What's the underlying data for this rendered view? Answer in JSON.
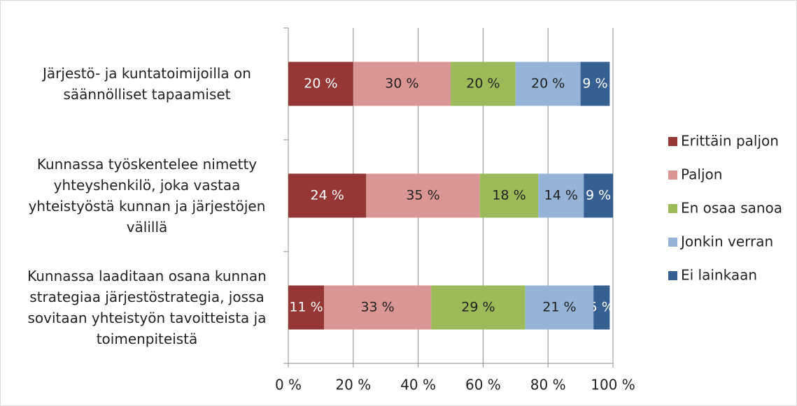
{
  "chart_data": {
    "type": "stacked-bar-horizontal",
    "categories": [
      "Järjestö- ja kuntatoimijoilla on säännölliset tapaamiset",
      "Kunnassa työskentelee nimetty yhteyshenkilö, joka vastaa yhteistyöstä kunnan ja järjestöjen välillä",
      "Kunnassa laaditaan osana kunnan strategiaa järjestöstrategia, jossa sovitaan yhteistyön tavoitteista ja toimenpiteistä"
    ],
    "series": [
      {
        "name": "Erittäin paljon",
        "color": "#953735",
        "label_color": "#ffffff",
        "values": [
          20,
          24,
          11
        ],
        "value_labels": [
          "20 %",
          "24 %",
          "11 %"
        ]
      },
      {
        "name": "Paljon",
        "color": "#d99694",
        "label_color": "#222222",
        "values": [
          30,
          35,
          33
        ],
        "value_labels": [
          "30 %",
          "35 %",
          "33 %"
        ]
      },
      {
        "name": "En osaa sanoa",
        "color": "#9bbb59",
        "label_color": "#222222",
        "values": [
          20,
          18,
          29
        ],
        "value_labels": [
          "20 %",
          "18 %",
          "29 %"
        ]
      },
      {
        "name": "Jonkin verran",
        "color": "#95b3d7",
        "label_color": "#222222",
        "values": [
          20,
          14,
          21
        ],
        "value_labels": [
          "20 %",
          "14 %",
          "21 %"
        ]
      },
      {
        "name": "Ei lainkaan",
        "color": "#376092",
        "label_color": "#ffffff",
        "values": [
          9,
          9,
          5
        ],
        "value_labels": [
          "9 %",
          "9 %",
          "5 %"
        ]
      }
    ],
    "xlim": [
      0,
      100
    ],
    "xticks": [
      {
        "value": 0,
        "label": "0 %"
      },
      {
        "value": 20,
        "label": "20 %"
      },
      {
        "value": 40,
        "label": "40 %"
      },
      {
        "value": 60,
        "label": "60 %"
      },
      {
        "value": 80,
        "label": "80 %"
      },
      {
        "value": 100,
        "label": "100 %"
      }
    ],
    "grid": true,
    "legend": "right"
  }
}
